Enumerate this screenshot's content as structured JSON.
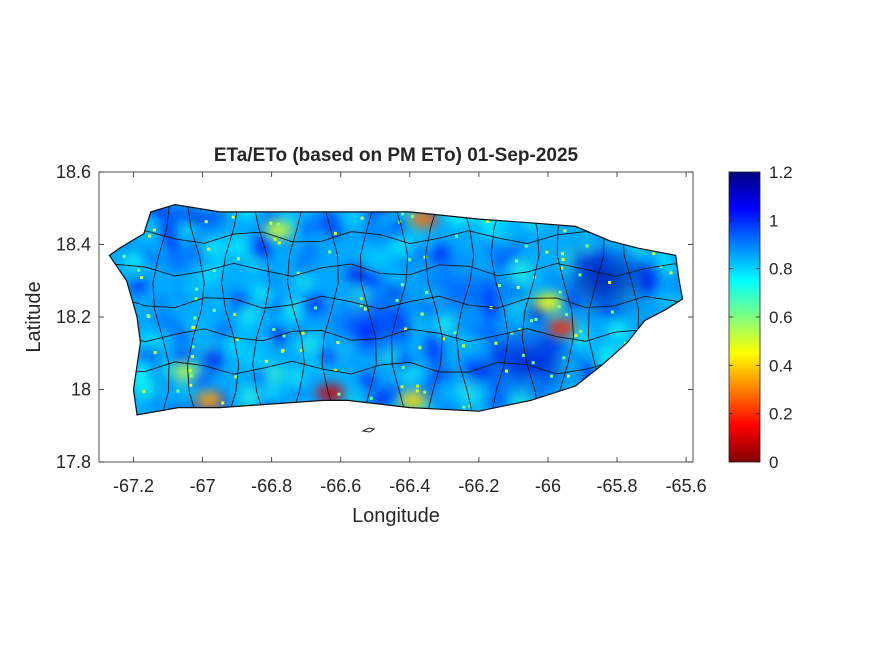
{
  "chart_data": {
    "type": "heatmap",
    "title": "ETa/ETo (based on PM ETo) 01-Sep-2025",
    "xlabel": "Longitude",
    "ylabel": "Latitude",
    "xlim": [
      -67.3,
      -65.58
    ],
    "ylim": [
      17.8,
      18.6
    ],
    "xticks": [
      -67.2,
      -67,
      -66.8,
      -66.6,
      -66.4,
      -66.2,
      -66,
      -65.8,
      -65.6
    ],
    "xtick_labels": [
      "-67.2",
      "-67",
      "-66.8",
      "-66.6",
      "-66.4",
      "-66.2",
      "-66",
      "-65.8",
      "-65.6"
    ],
    "yticks": [
      17.8,
      18,
      18.2,
      18.4,
      18.6
    ],
    "ytick_labels": [
      "17.8",
      "18",
      "18.2",
      "18.4",
      "18.6"
    ],
    "colorbar": {
      "colormap": "jet",
      "clim": [
        0,
        1.2
      ],
      "ticks": [
        0,
        0.2,
        0.4,
        0.6,
        0.8,
        1,
        1.2
      ],
      "tick_labels": [
        "0",
        "0.2",
        "0.4",
        "0.6",
        "0.8",
        "1",
        "1.2"
      ]
    },
    "grid": false,
    "island_outline": [
      [
        -67.27,
        18.37
      ],
      [
        -67.24,
        18.39
      ],
      [
        -67.17,
        18.43
      ],
      [
        -67.15,
        18.49
      ],
      [
        -67.08,
        18.51
      ],
      [
        -66.95,
        18.49
      ],
      [
        -66.82,
        18.49
      ],
      [
        -66.6,
        18.49
      ],
      [
        -66.4,
        18.49
      ],
      [
        -66.2,
        18.47
      ],
      [
        -66.05,
        18.46
      ],
      [
        -65.92,
        18.45
      ],
      [
        -65.82,
        18.41
      ],
      [
        -65.74,
        18.39
      ],
      [
        -65.63,
        18.37
      ],
      [
        -65.62,
        18.3
      ],
      [
        -65.61,
        18.25
      ],
      [
        -65.66,
        18.22
      ],
      [
        -65.72,
        18.19
      ],
      [
        -65.77,
        18.13
      ],
      [
        -65.84,
        18.07
      ],
      [
        -65.92,
        18.01
      ],
      [
        -66.05,
        17.97
      ],
      [
        -66.2,
        17.94
      ],
      [
        -66.4,
        17.95
      ],
      [
        -66.58,
        17.97
      ],
      [
        -66.65,
        17.97
      ],
      [
        -66.8,
        17.96
      ],
      [
        -66.95,
        17.95
      ],
      [
        -67.07,
        17.95
      ],
      [
        -67.19,
        17.93
      ],
      [
        -67.2,
        18.0
      ],
      [
        -67.18,
        18.13
      ],
      [
        -67.19,
        18.2
      ],
      [
        -67.22,
        18.3
      ],
      [
        -67.27,
        18.37
      ]
    ],
    "low_value_zones": [
      {
        "lon": -66.63,
        "lat": 17.99,
        "value": 0.1
      },
      {
        "lon": -66.39,
        "lat": 17.97,
        "value": 0.4
      },
      {
        "lon": -66.98,
        "lat": 17.97,
        "value": 0.35
      },
      {
        "lon": -65.96,
        "lat": 18.17,
        "value": 0.2
      },
      {
        "lon": -66.0,
        "lat": 18.24,
        "value": 0.45
      },
      {
        "lon": -66.36,
        "lat": 18.47,
        "value": 0.3
      },
      {
        "lon": -66.78,
        "lat": 18.44,
        "value": 0.5
      },
      {
        "lon": -67.05,
        "lat": 18.05,
        "value": 0.55
      }
    ],
    "high_value_zones": [
      {
        "lon": -65.83,
        "lat": 18.3,
        "value": 1.15
      },
      {
        "lon": -66.05,
        "lat": 18.08,
        "value": 1.1
      },
      {
        "lon": -66.5,
        "lat": 18.18,
        "value": 1.0
      },
      {
        "lon": -66.25,
        "lat": 18.28,
        "value": 0.95
      }
    ]
  }
}
